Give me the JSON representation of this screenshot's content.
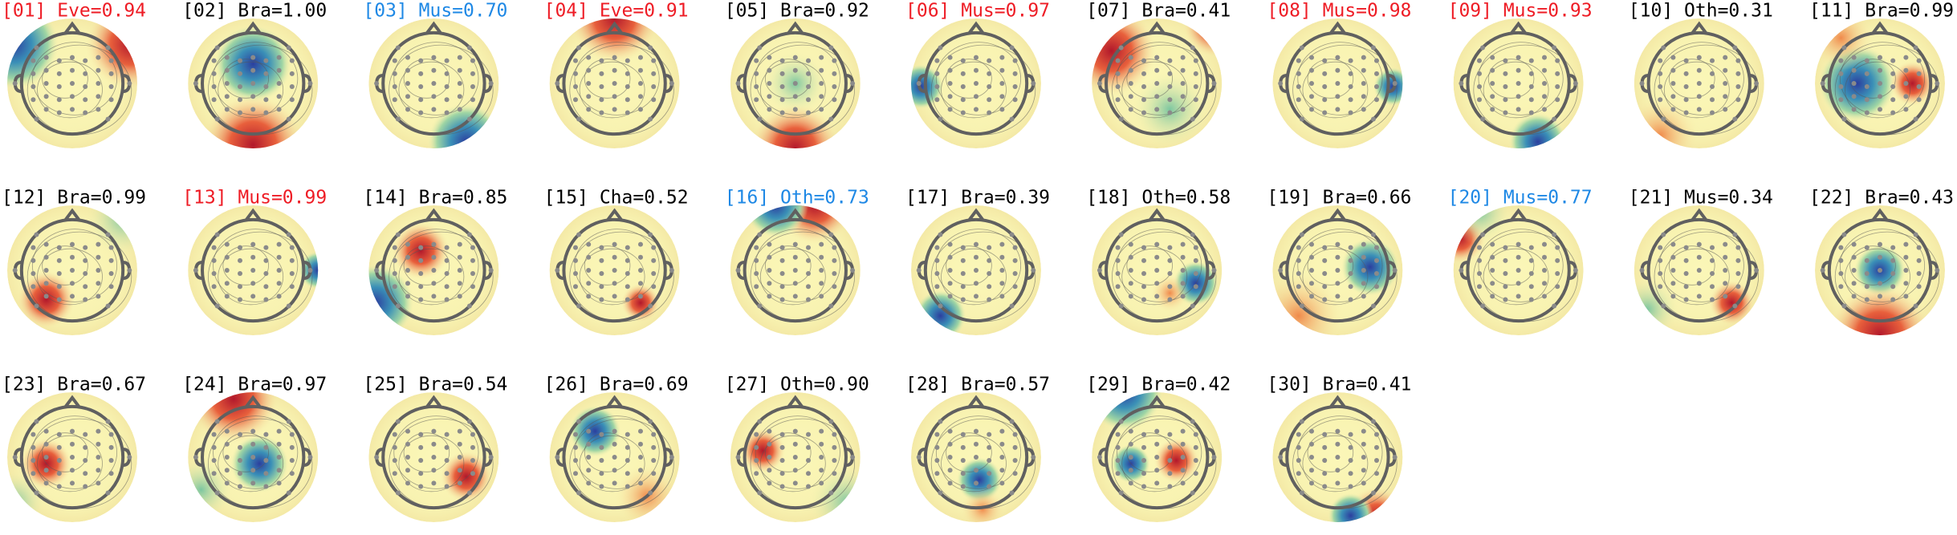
{
  "components": [
    {
      "label": "[01] Eve=0.94",
      "color": "#ee1c25"
    },
    {
      "label": "[02] Bra=1.00",
      "color": "#000000"
    },
    {
      "label": "[03] Mus=0.70",
      "color": "#1e88e5"
    },
    {
      "label": "[04] Eve=0.91",
      "color": "#ee1c25"
    },
    {
      "label": "[05] Bra=0.92",
      "color": "#000000"
    },
    {
      "label": "[06] Mus=0.97",
      "color": "#ee1c25"
    },
    {
      "label": "[07] Bra=0.41",
      "color": "#000000"
    },
    {
      "label": "[08] Mus=0.98",
      "color": "#ee1c25"
    },
    {
      "label": "[09] Mus=0.93",
      "color": "#ee1c25"
    },
    {
      "label": "[10] Oth=0.31",
      "color": "#000000"
    },
    {
      "label": "[11] Bra=0.99",
      "color": "#000000"
    },
    {
      "label": "[12] Bra=0.99",
      "color": "#000000"
    },
    {
      "label": "[13] Mus=0.99",
      "color": "#ee1c25"
    },
    {
      "label": "[14] Bra=0.85",
      "color": "#000000"
    },
    {
      "label": "[15] Cha=0.52",
      "color": "#000000"
    },
    {
      "label": "[16] Oth=0.73",
      "color": "#1e88e5"
    },
    {
      "label": "[17] Bra=0.39",
      "color": "#000000"
    },
    {
      "label": "[18] Oth=0.58",
      "color": "#000000"
    },
    {
      "label": "[19] Bra=0.66",
      "color": "#000000"
    },
    {
      "label": "[20] Mus=0.77",
      "color": "#1e88e5"
    },
    {
      "label": "[21] Mus=0.34",
      "color": "#000000"
    },
    {
      "label": "[22] Bra=0.43",
      "color": "#000000"
    },
    {
      "label": "[23] Bra=0.67",
      "color": "#000000"
    },
    {
      "label": "[24] Bra=0.97",
      "color": "#000000"
    },
    {
      "label": "[25] Bra=0.54",
      "color": "#000000"
    },
    {
      "label": "[26] Bra=0.69",
      "color": "#000000"
    },
    {
      "label": "[27] Oth=0.90",
      "color": "#000000"
    },
    {
      "label": "[28] Bra=0.57",
      "color": "#000000"
    },
    {
      "label": "[29] Bra=0.42",
      "color": "#000000"
    },
    {
      "label": "[30] Bra=0.41",
      "color": "#000000"
    }
  ]
}
